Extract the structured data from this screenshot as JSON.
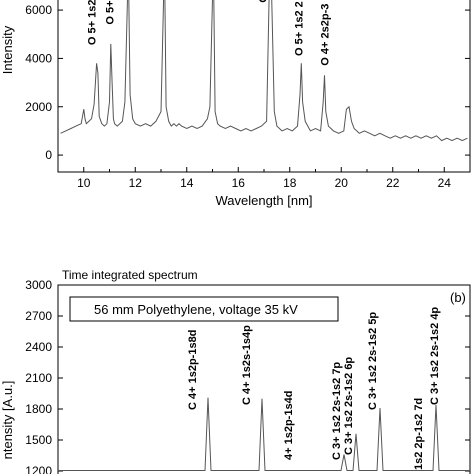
{
  "chart_data": [
    {
      "type": "line",
      "title": "",
      "xlabel": "Wavelength [nm]",
      "ylabel": "Intensity",
      "xlim": [
        9,
        25
      ],
      "ylim": [
        -700,
        6500
      ],
      "x_ticks": [
        10,
        12,
        14,
        16,
        18,
        20,
        22,
        24
      ],
      "y_ticks": [
        0,
        2000,
        4000,
        6000
      ],
      "grid": false,
      "series": [
        {
          "name": "",
          "color": "#555555",
          "x": [
            9.1,
            9.3,
            9.5,
            9.7,
            9.9,
            10.0,
            10.05,
            10.1,
            10.2,
            10.3,
            10.4,
            10.5,
            10.55,
            10.6,
            10.7,
            10.8,
            10.9,
            11.0,
            11.05,
            11.1,
            11.15,
            11.2,
            11.3,
            11.4,
            11.5,
            11.6,
            11.7,
            11.75,
            11.8,
            11.9,
            12.0,
            12.2,
            12.4,
            12.6,
            12.8,
            13.0,
            13.1,
            13.15,
            13.2,
            13.3,
            13.4,
            13.5,
            13.6,
            13.7,
            13.8,
            14.0,
            14.2,
            14.4,
            14.6,
            14.8,
            14.9,
            15.0,
            15.05,
            15.1,
            15.2,
            15.3,
            15.5,
            15.7,
            15.9,
            16.1,
            16.3,
            16.5,
            16.7,
            16.9,
            17.1,
            17.2,
            17.25,
            17.3,
            17.4,
            17.5,
            17.7,
            17.9,
            18.1,
            18.3,
            18.4,
            18.45,
            18.5,
            18.6,
            18.8,
            19.0,
            19.2,
            19.3,
            19.35,
            19.4,
            19.5,
            19.7,
            19.9,
            20.1,
            20.2,
            20.3,
            20.4,
            20.5,
            20.7,
            20.9,
            21.1,
            21.3,
            21.5,
            21.7,
            21.9,
            22.1,
            22.3,
            22.5,
            22.7,
            22.9,
            23.1,
            23.3,
            23.5,
            23.7,
            23.9,
            24.1,
            24.3,
            24.5,
            24.7,
            24.9
          ],
          "values": [
            900,
            1000,
            1100,
            1200,
            1300,
            1900,
            1500,
            1300,
            1400,
            1500,
            2100,
            3800,
            3400,
            1600,
            1300,
            1200,
            1300,
            2200,
            4600,
            3000,
            1500,
            1300,
            1200,
            1300,
            1400,
            2200,
            6500,
            6500,
            2500,
            1500,
            1300,
            1200,
            1300,
            1200,
            1400,
            1800,
            6500,
            6500,
            2000,
            1400,
            1200,
            1300,
            1200,
            1300,
            1200,
            1100,
            1200,
            1100,
            1200,
            1500,
            2000,
            6500,
            6500,
            1800,
            1300,
            1200,
            1100,
            1200,
            1100,
            1000,
            1100,
            1000,
            1100,
            1200,
            1400,
            6500,
            6500,
            6500,
            1800,
            1200,
            1000,
            1100,
            1000,
            1200,
            2500,
            3800,
            2200,
            1400,
            1000,
            1100,
            1000,
            2200,
            3300,
            1800,
            1200,
            1000,
            900,
            1000,
            1900,
            2000,
            1400,
            1100,
            900,
            1000,
            900,
            800,
            900,
            800,
            700,
            800,
            700,
            800,
            700,
            800,
            700,
            800,
            700,
            800,
            600,
            700,
            600,
            700,
            600,
            700
          ]
        }
      ],
      "annotations": [
        "O 5+ 1s2 2s-",
        "O 5+ 1s2",
        "O 5+ 1s2 2",
        "O 4+ 2s2p-3",
        "O",
        "O"
      ]
    },
    {
      "type": "line",
      "title": "Time integrated spectrum",
      "panel_label": "(b)",
      "note": "56 mm Polyethylene, voltage 35 kV",
      "xlabel": "",
      "ylabel": "ntensity [A.u.]",
      "ylim": [
        1200,
        3000
      ],
      "y_ticks": [
        1200,
        1500,
        1800,
        2100,
        2400,
        2700,
        3000
      ],
      "grid": false,
      "series": [
        {
          "name": "",
          "color": "#555555",
          "x": [
            0,
            1,
            2,
            3,
            4,
            5,
            6,
            7,
            8,
            9,
            10,
            11,
            12,
            13,
            14,
            15,
            16,
            17,
            18,
            19,
            20,
            21,
            22,
            23,
            24,
            25,
            26,
            27,
            28,
            29,
            30
          ],
          "values": [
            1200,
            1200,
            1200,
            1200,
            1200,
            1200,
            1200,
            1200,
            1900,
            1200,
            1200,
            1200,
            1200,
            1900,
            1200,
            1200,
            1200,
            1200,
            1200,
            1350,
            1200,
            1550,
            1200,
            1800,
            1200,
            1200,
            1200,
            1850,
            1200,
            1200,
            1200
          ]
        }
      ],
      "annotations": [
        "C 4+ 1s2p-1s8d",
        "C 4+ 1s2s-1s4p",
        "4+ 1s2p-1s4d",
        "C 3+ 1s2 2s-1s2 7p",
        "C 3+ 1s2 2s-1s2 6p",
        "C 3+ 1s2 2s-1s2 5p",
        "1s2 2p-1s2 7d",
        "C 3+ 1s2 2s-1s2 4p"
      ]
    }
  ],
  "text": {
    "top_xlabel": "Wavelength [nm]",
    "top_ylabel": "Intensity",
    "bottom_ylabel": "ntensity [A.u.]",
    "bottom_title": "Time integrated spectrum",
    "bottom_panel_label": "(b)",
    "bottom_note": "56 mm Polyethylene, voltage 35 kV",
    "top_peaks": [
      {
        "text": "O 5+ 1s2 2s-"
      },
      {
        "text": "O 5+ 1s2"
      },
      {
        "text": "O 5+ 1s2 2"
      },
      {
        "text": "O 4+ 2s2p-3"
      },
      {
        "text": "O"
      },
      {
        "text": "O"
      }
    ],
    "bottom_peaks": [
      {
        "text": "C 4+ 1s2p-1s8d"
      },
      {
        "text": "C 4+ 1s2s-1s4p"
      },
      {
        "text": "4+ 1s2p-1s4d"
      },
      {
        "text": "C 3+ 1s2 2s-1s2 7p"
      },
      {
        "text": "C 3+ 1s2 2s-1s2 6p"
      },
      {
        "text": "C 3+ 1s2 2s-1s2 5p"
      },
      {
        "text": "1s2 2p-1s2 7d"
      },
      {
        "text": "C 3+ 1s2 2s-1s2 4p"
      }
    ]
  }
}
